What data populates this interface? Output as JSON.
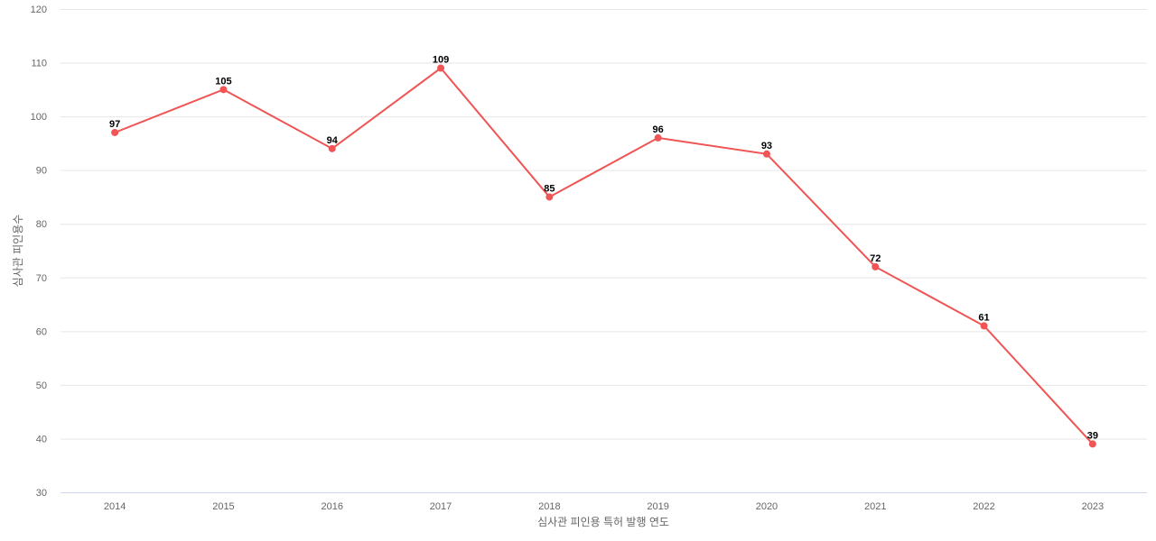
{
  "chart_data": {
    "type": "line",
    "title": "",
    "xlabel": "심사관 피인용 특허 발행 연도",
    "ylabel": "심사관 피인용수",
    "categories": [
      "2014",
      "2015",
      "2016",
      "2017",
      "2018",
      "2019",
      "2020",
      "2021",
      "2022",
      "2023"
    ],
    "series": [
      {
        "values": [
          97,
          105,
          94,
          109,
          85,
          96,
          93,
          72,
          61,
          39
        ],
        "color": "#f05454"
      }
    ],
    "ylim": [
      30,
      120
    ],
    "yticks": [
      30,
      40,
      50,
      60,
      70,
      80,
      90,
      100,
      110,
      120
    ],
    "grid": true,
    "legend": "none",
    "data_labels": true
  }
}
